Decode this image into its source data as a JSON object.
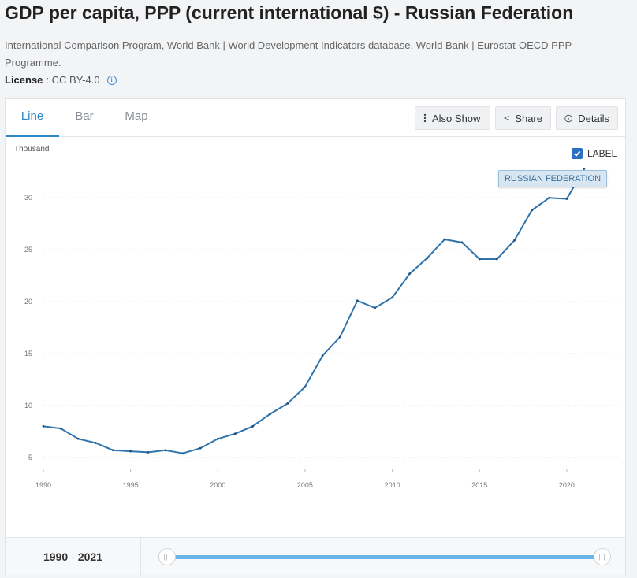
{
  "header": {
    "title": "GDP per capita, PPP (current international $) - Russian Federation",
    "source": "International Comparison Program, World Bank | World Development Indicators database, World Bank | Eurostat-OECD PPP Programme.",
    "license_label": "License",
    "license_value": ": CC BY-4.0"
  },
  "tabs": [
    {
      "label": "Line",
      "active": true
    },
    {
      "label": "Bar",
      "active": false
    },
    {
      "label": "Map",
      "active": false
    }
  ],
  "toolbar": {
    "also_show": "Also Show",
    "share": "Share",
    "details": "Details"
  },
  "chart": {
    "unit_label": "Thousand",
    "label_toggle": "LABEL",
    "label_checked": true,
    "series_tag": "RUSSIAN FEDERATION"
  },
  "chart_data": {
    "type": "line",
    "title": "",
    "xlabel": "",
    "ylabel": "Thousand",
    "ylim": [
      2.5,
      33.5
    ],
    "xlim": [
      1990,
      2021
    ],
    "yticks": [
      5,
      10,
      15,
      20,
      25,
      30
    ],
    "xticks": [
      1990,
      1995,
      2000,
      2005,
      2010,
      2015,
      2020
    ],
    "grid": true,
    "line_color": "#2f74ad",
    "series": [
      {
        "name": "RUSSIAN FEDERATION",
        "x": [
          1990,
          1991,
          1992,
          1993,
          1994,
          1995,
          1996,
          1997,
          1998,
          1999,
          2000,
          2001,
          2002,
          2003,
          2004,
          2005,
          2006,
          2007,
          2008,
          2009,
          2010,
          2011,
          2012,
          2013,
          2014,
          2015,
          2016,
          2017,
          2018,
          2019,
          2020,
          2021
        ],
        "values": [
          8.0,
          7.8,
          6.8,
          6.4,
          5.7,
          5.6,
          5.5,
          5.7,
          5.4,
          5.9,
          6.8,
          7.3,
          8.0,
          9.2,
          10.2,
          11.8,
          14.8,
          16.6,
          20.1,
          19.4,
          20.4,
          22.7,
          24.2,
          26.0,
          25.7,
          24.1,
          24.1,
          25.9,
          28.8,
          30.0,
          29.9,
          32.8
        ]
      }
    ]
  },
  "footer": {
    "range_start": "1990",
    "range_end": "2021"
  }
}
